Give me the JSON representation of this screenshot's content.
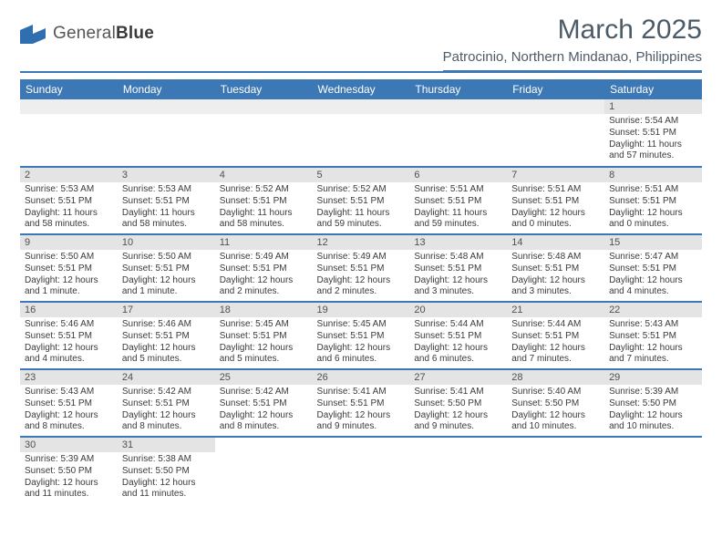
{
  "logo": {
    "brand_a": "General",
    "brand_b": "Blue"
  },
  "header": {
    "title": "March 2025",
    "location": "Patrocinio, Northern Mindanao, Philippines"
  },
  "weekdays": [
    "Sunday",
    "Monday",
    "Tuesday",
    "Wednesday",
    "Thursday",
    "Friday",
    "Saturday"
  ],
  "style": {
    "accent_color": "#3b78b5",
    "daynum_bg": "#e4e4e4",
    "text_color": "#3a3a3a",
    "header_text_color": "#4c5b68",
    "background_color": "#ffffff",
    "font_family": "Arial",
    "title_fontsize_pt": 22,
    "location_fontsize_pt": 11,
    "weekday_fontsize_pt": 9,
    "cell_fontsize_pt": 7.5,
    "columns": 7,
    "rows": 6
  },
  "weeks": [
    [
      {
        "blank": true
      },
      {
        "blank": true
      },
      {
        "blank": true
      },
      {
        "blank": true
      },
      {
        "blank": true
      },
      {
        "blank": true
      },
      {
        "n": "1",
        "sunrise": "5:54 AM",
        "sunset": "5:51 PM",
        "daylight": "11 hours and 57 minutes."
      }
    ],
    [
      {
        "n": "2",
        "sunrise": "5:53 AM",
        "sunset": "5:51 PM",
        "daylight": "11 hours and 58 minutes."
      },
      {
        "n": "3",
        "sunrise": "5:53 AM",
        "sunset": "5:51 PM",
        "daylight": "11 hours and 58 minutes."
      },
      {
        "n": "4",
        "sunrise": "5:52 AM",
        "sunset": "5:51 PM",
        "daylight": "11 hours and 58 minutes."
      },
      {
        "n": "5",
        "sunrise": "5:52 AM",
        "sunset": "5:51 PM",
        "daylight": "11 hours and 59 minutes."
      },
      {
        "n": "6",
        "sunrise": "5:51 AM",
        "sunset": "5:51 PM",
        "daylight": "11 hours and 59 minutes."
      },
      {
        "n": "7",
        "sunrise": "5:51 AM",
        "sunset": "5:51 PM",
        "daylight": "12 hours and 0 minutes."
      },
      {
        "n": "8",
        "sunrise": "5:51 AM",
        "sunset": "5:51 PM",
        "daylight": "12 hours and 0 minutes."
      }
    ],
    [
      {
        "n": "9",
        "sunrise": "5:50 AM",
        "sunset": "5:51 PM",
        "daylight": "12 hours and 1 minute."
      },
      {
        "n": "10",
        "sunrise": "5:50 AM",
        "sunset": "5:51 PM",
        "daylight": "12 hours and 1 minute."
      },
      {
        "n": "11",
        "sunrise": "5:49 AM",
        "sunset": "5:51 PM",
        "daylight": "12 hours and 2 minutes."
      },
      {
        "n": "12",
        "sunrise": "5:49 AM",
        "sunset": "5:51 PM",
        "daylight": "12 hours and 2 minutes."
      },
      {
        "n": "13",
        "sunrise": "5:48 AM",
        "sunset": "5:51 PM",
        "daylight": "12 hours and 3 minutes."
      },
      {
        "n": "14",
        "sunrise": "5:48 AM",
        "sunset": "5:51 PM",
        "daylight": "12 hours and 3 minutes."
      },
      {
        "n": "15",
        "sunrise": "5:47 AM",
        "sunset": "5:51 PM",
        "daylight": "12 hours and 4 minutes."
      }
    ],
    [
      {
        "n": "16",
        "sunrise": "5:46 AM",
        "sunset": "5:51 PM",
        "daylight": "12 hours and 4 minutes."
      },
      {
        "n": "17",
        "sunrise": "5:46 AM",
        "sunset": "5:51 PM",
        "daylight": "12 hours and 5 minutes."
      },
      {
        "n": "18",
        "sunrise": "5:45 AM",
        "sunset": "5:51 PM",
        "daylight": "12 hours and 5 minutes."
      },
      {
        "n": "19",
        "sunrise": "5:45 AM",
        "sunset": "5:51 PM",
        "daylight": "12 hours and 6 minutes."
      },
      {
        "n": "20",
        "sunrise": "5:44 AM",
        "sunset": "5:51 PM",
        "daylight": "12 hours and 6 minutes."
      },
      {
        "n": "21",
        "sunrise": "5:44 AM",
        "sunset": "5:51 PM",
        "daylight": "12 hours and 7 minutes."
      },
      {
        "n": "22",
        "sunrise": "5:43 AM",
        "sunset": "5:51 PM",
        "daylight": "12 hours and 7 minutes."
      }
    ],
    [
      {
        "n": "23",
        "sunrise": "5:43 AM",
        "sunset": "5:51 PM",
        "daylight": "12 hours and 8 minutes."
      },
      {
        "n": "24",
        "sunrise": "5:42 AM",
        "sunset": "5:51 PM",
        "daylight": "12 hours and 8 minutes."
      },
      {
        "n": "25",
        "sunrise": "5:42 AM",
        "sunset": "5:51 PM",
        "daylight": "12 hours and 8 minutes."
      },
      {
        "n": "26",
        "sunrise": "5:41 AM",
        "sunset": "5:51 PM",
        "daylight": "12 hours and 9 minutes."
      },
      {
        "n": "27",
        "sunrise": "5:41 AM",
        "sunset": "5:50 PM",
        "daylight": "12 hours and 9 minutes."
      },
      {
        "n": "28",
        "sunrise": "5:40 AM",
        "sunset": "5:50 PM",
        "daylight": "12 hours and 10 minutes."
      },
      {
        "n": "29",
        "sunrise": "5:39 AM",
        "sunset": "5:50 PM",
        "daylight": "12 hours and 10 minutes."
      }
    ],
    [
      {
        "n": "30",
        "sunrise": "5:39 AM",
        "sunset": "5:50 PM",
        "daylight": "12 hours and 11 minutes."
      },
      {
        "n": "31",
        "sunrise": "5:38 AM",
        "sunset": "5:50 PM",
        "daylight": "12 hours and 11 minutes."
      },
      {
        "blank": true
      },
      {
        "blank": true
      },
      {
        "blank": true
      },
      {
        "blank": true
      },
      {
        "blank": true
      }
    ]
  ],
  "labels": {
    "sunrise_prefix": "Sunrise: ",
    "sunset_prefix": "Sunset: ",
    "daylight_prefix": "Daylight: "
  }
}
